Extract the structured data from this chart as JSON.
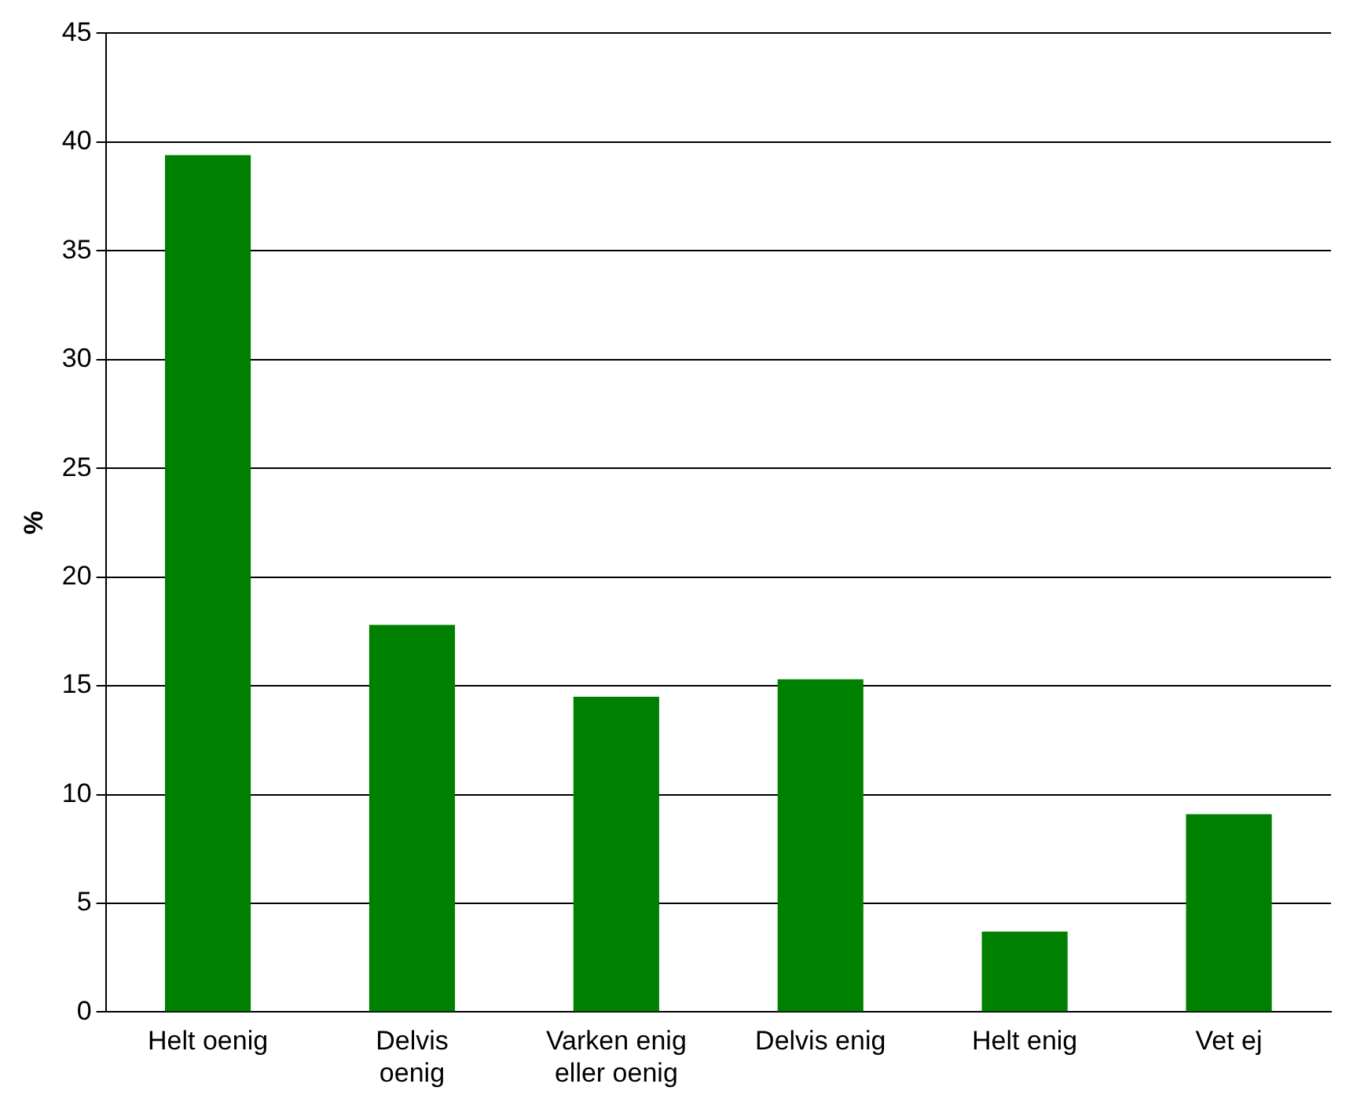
{
  "chart_data": {
    "type": "bar",
    "ylabel": "%",
    "categories": [
      "Helt oenig",
      "Delvis oenig",
      "Varken enig eller oenig",
      "Delvis enig",
      "Helt enig",
      "Vet ej"
    ],
    "values": [
      39.4,
      17.8,
      14.5,
      15.3,
      3.7,
      9.1
    ],
    "color": "#008000",
    "ylim": [
      0,
      45
    ],
    "yticks": [
      0,
      5,
      10,
      15,
      20,
      25,
      30,
      35,
      40,
      45
    ],
    "grid": "y"
  }
}
